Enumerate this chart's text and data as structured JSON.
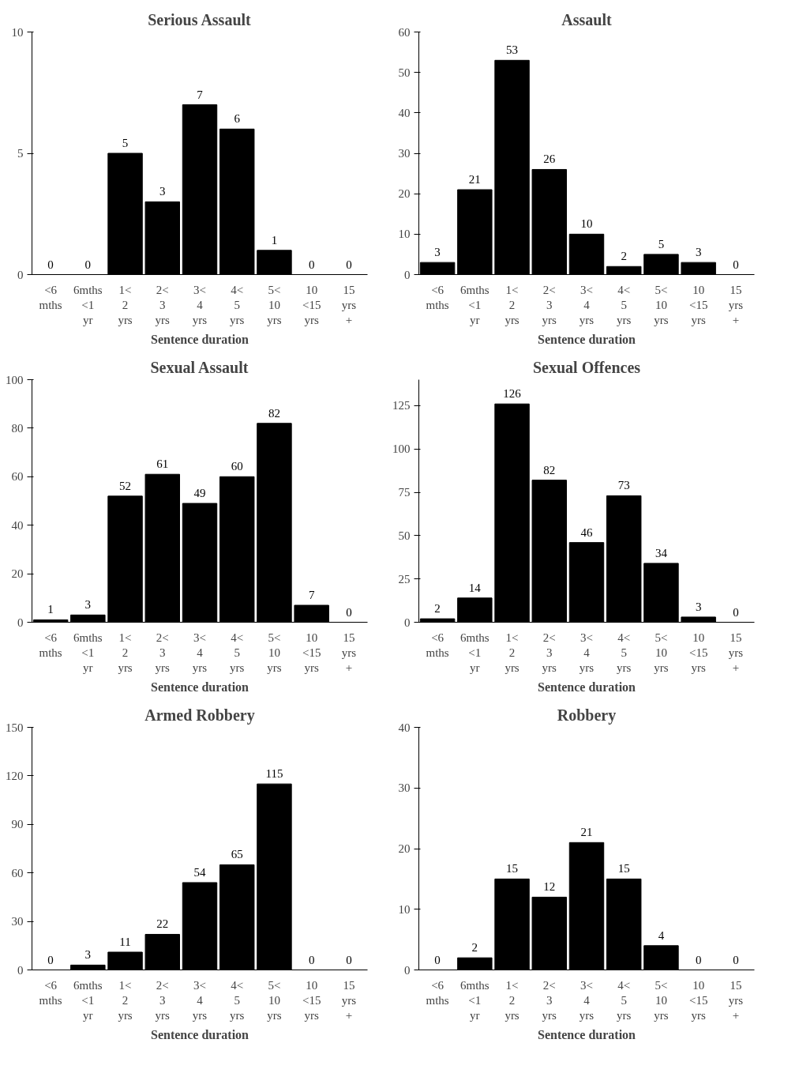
{
  "chart_data": [
    {
      "type": "bar",
      "title": "Serious Assault",
      "xlabel": "Sentence duration",
      "categories": [
        "<6 mths",
        "6mths <1 yr",
        "1< 2 yrs",
        "2< 3 yrs",
        "3< 4 yrs",
        "4< 5 yrs",
        "5< 10 yrs",
        "10 <15 yrs",
        "15 yrs +"
      ],
      "values": [
        0,
        0,
        5,
        3,
        7,
        6,
        1,
        0,
        0
      ],
      "color": "#000000",
      "ylim": [
        0,
        10
      ],
      "yticks": [
        0,
        5,
        10
      ],
      "data_labels": true,
      "grid": false
    },
    {
      "type": "bar",
      "title": "Assault",
      "xlabel": "Sentence duration",
      "categories": [
        "<6 mths",
        "6mths <1 yr",
        "1< 2 yrs",
        "2< 3 yrs",
        "3< 4 yrs",
        "4< 5 yrs",
        "5< 10 yrs",
        "10 <15 yrs",
        "15 yrs +"
      ],
      "values": [
        3,
        21,
        53,
        26,
        10,
        2,
        5,
        3,
        0
      ],
      "color": "#000000",
      "ylim": [
        0,
        60
      ],
      "yticks": [
        0,
        10,
        20,
        30,
        40,
        50,
        60
      ],
      "data_labels": true,
      "grid": false
    },
    {
      "type": "bar",
      "title": "Sexual Assault",
      "xlabel": "Sentence duration",
      "categories": [
        "<6 mths",
        "6mths <1 yr",
        "1< 2 yrs",
        "2< 3 yrs",
        "3< 4 yrs",
        "4< 5 yrs",
        "5< 10 yrs",
        "10 <15 yrs",
        "15 yrs +"
      ],
      "values": [
        1,
        3,
        52,
        61,
        49,
        60,
        82,
        7,
        0
      ],
      "color": "#000000",
      "ylim": [
        0,
        100
      ],
      "yticks": [
        0,
        20,
        40,
        60,
        80,
        100
      ],
      "data_labels": true,
      "grid": false
    },
    {
      "type": "bar",
      "title": "Sexual Offences",
      "xlabel": "Sentence duration",
      "categories": [
        "<6 mths",
        "6mths <1 yr",
        "1< 2 yrs",
        "2< 3 yrs",
        "3< 4 yrs",
        "4< 5 yrs",
        "5< 10 yrs",
        "10 <15 yrs",
        "15 yrs +"
      ],
      "values": [
        2,
        14,
        126,
        82,
        46,
        73,
        34,
        3,
        0
      ],
      "color": "#000000",
      "ylim": [
        0,
        140
      ],
      "yticks": [
        0,
        25,
        50,
        75,
        100,
        125
      ],
      "data_labels": true,
      "grid": false
    },
    {
      "type": "bar",
      "title": "Armed Robbery",
      "xlabel": "Sentence duration",
      "categories": [
        "<6 mths",
        "6mths <1 yr",
        "1< 2 yrs",
        "2< 3 yrs",
        "3< 4 yrs",
        "4< 5 yrs",
        "5< 10 yrs",
        "10 <15 yrs",
        "15 yrs +"
      ],
      "values": [
        0,
        3,
        11,
        22,
        54,
        65,
        115,
        0,
        0
      ],
      "color": "#000000",
      "ylim": [
        0,
        150
      ],
      "yticks": [
        0,
        30,
        60,
        90,
        120,
        150
      ],
      "data_labels": true,
      "grid": false
    },
    {
      "type": "bar",
      "title": "Robbery",
      "xlabel": "Sentence duration",
      "categories": [
        "<6 mths",
        "6mths <1 yr",
        "1< 2 yrs",
        "2< 3 yrs",
        "3< 4 yrs",
        "4< 5 yrs",
        "5< 10 yrs",
        "10 <15 yrs",
        "15 yrs +"
      ],
      "values": [
        0,
        2,
        15,
        12,
        21,
        15,
        4,
        0,
        0
      ],
      "color": "#000000",
      "ylim": [
        0,
        40
      ],
      "yticks": [
        0,
        10,
        20,
        30,
        40
      ],
      "data_labels": true,
      "grid": false
    }
  ]
}
